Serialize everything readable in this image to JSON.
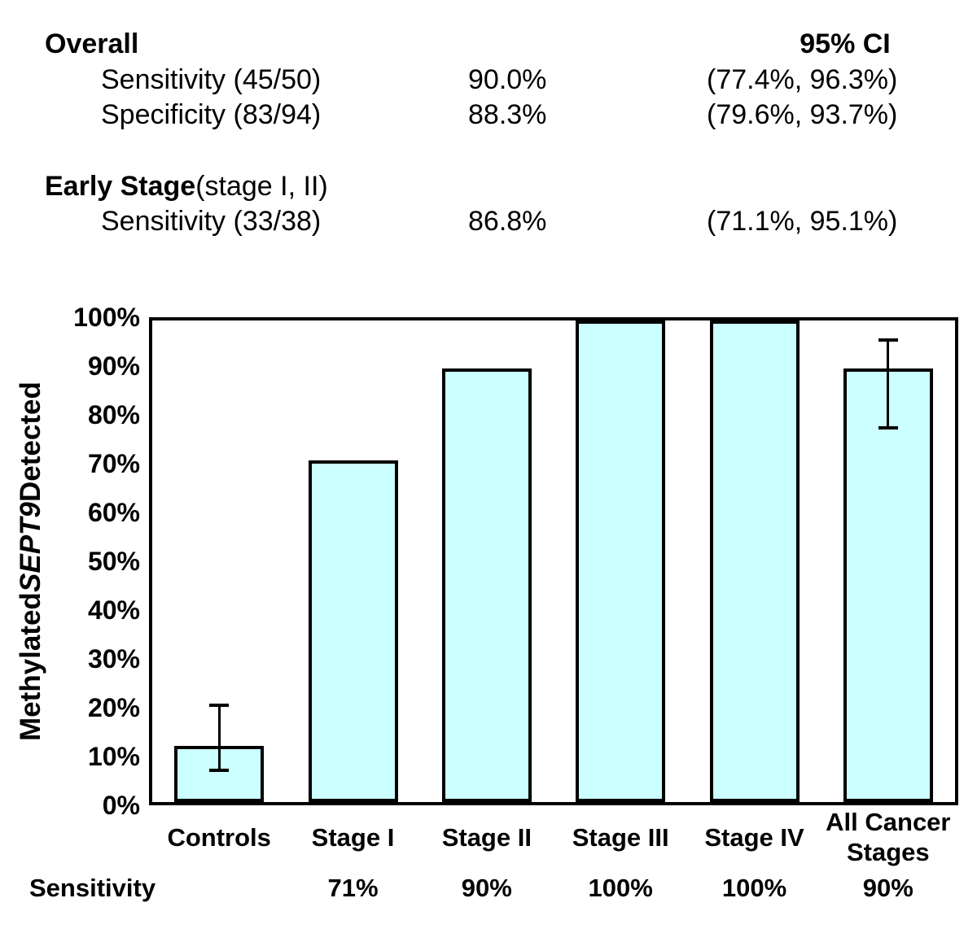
{
  "stats_table": {
    "header": {
      "title": "Overall",
      "ci_header": "95% CI"
    },
    "overall_rows": [
      {
        "label": "Sensitivity (45/50)",
        "value": "90.0%",
        "ci": "(77.4%, 96.3%)"
      },
      {
        "label": "Specificity (83/94)",
        "value": "88.3%",
        "ci": "(79.6%, 93.7%)"
      }
    ],
    "early_stage": {
      "title": "Early Stage",
      "title_suffix": " (stage I, II)",
      "rows": [
        {
          "label": "Sensitivity (33/38)",
          "value": "86.8%",
          "ci": "(71.1%, 95.1%)"
        }
      ]
    }
  },
  "chart_data": {
    "type": "bar",
    "categories": [
      "Controls",
      "Stage I",
      "Stage II",
      "Stage III",
      "Stage IV",
      "All Cancer Stages"
    ],
    "values": [
      11.7,
      71,
      90,
      100,
      100,
      90
    ],
    "error_bars": [
      {
        "category": "Controls",
        "low": 6.3,
        "high": 20.4
      },
      {
        "category": "All Cancer Stages",
        "low": 77.4,
        "high": 96.3
      }
    ],
    "ylabel_prefix": "Methylated ",
    "ylabel_italic": "SEPT9",
    "ylabel_suffix": " Detected",
    "yticks": [
      "0%",
      "10%",
      "20%",
      "30%",
      "40%",
      "50%",
      "60%",
      "70%",
      "80%",
      "90%",
      "100%"
    ],
    "ylim": [
      0,
      100
    ],
    "grid": false,
    "legend": "none",
    "bar_fill": "#CCFFFF",
    "bar_border": "#000000",
    "sensitivity_row": {
      "label": "Sensitivity",
      "values": [
        "",
        "71%",
        "90%",
        "100%",
        "100%",
        "90%"
      ]
    }
  }
}
